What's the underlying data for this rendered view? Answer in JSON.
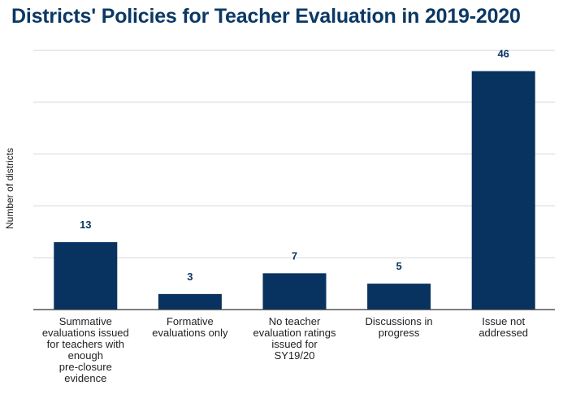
{
  "chart_data": {
    "type": "bar",
    "title": "Districts' Policies for Teacher Evaluation in 2019-2020",
    "ylabel": "Number of districts",
    "xlabel": "",
    "categories": [
      "Summative\nevaluations issued\nfor teachers with\nenough\npre-closure\nevidence",
      "Formative\nevaluations only",
      "No teacher\nevaluation ratings\nissued for\nSY19/20",
      "Discussions in\nprogress",
      "Issue not\naddressed"
    ],
    "values": [
      13,
      3,
      7,
      5,
      46
    ],
    "ylim": [
      0,
      50
    ],
    "grid": true,
    "bar_color": "#08325f",
    "label_color": "#0b3864"
  }
}
